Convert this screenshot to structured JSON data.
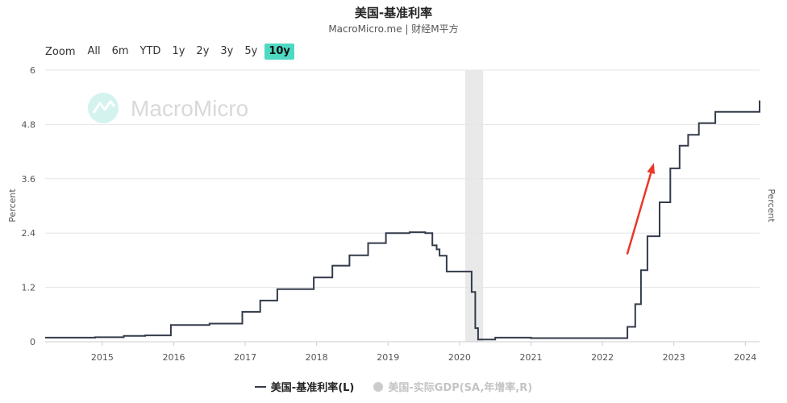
{
  "header": {
    "title": "美国-基准利率",
    "subtitle": "MacroMicro.me | 财经M平方"
  },
  "range_selector": {
    "zoom_label": "Zoom",
    "buttons": [
      "All",
      "6m",
      "YTD",
      "1y",
      "2y",
      "3y",
      "5y",
      "10y"
    ],
    "active": "10y"
  },
  "watermark": "MacroMicro",
  "colors": {
    "line": "#333b4a",
    "active": "#4ed9c3",
    "recession": "#e9e9e9",
    "arrow": "#e8382a",
    "grid": "#e6e6e6"
  },
  "legend": [
    {
      "label": "美国-基准利率(L)",
      "enabled": true
    },
    {
      "label": "美国-实际GDP(SA,年增率,R)",
      "enabled": false
    }
  ],
  "chart_data": {
    "type": "line",
    "xlim": [
      2014.2,
      2024.2
    ],
    "ylim": [
      0,
      6
    ],
    "yticks": [
      "0",
      "1.2",
      "2.4",
      "3.6",
      "4.8",
      "6"
    ],
    "xticks": [
      "2015",
      "2016",
      "2017",
      "2018",
      "2019",
      "2020",
      "2021",
      "2022",
      "2023",
      "2024"
    ],
    "ylabel_left": "Percent",
    "ylabel_right": "Percent",
    "recession_band": [
      2020.08,
      2020.33
    ],
    "annotation": "arrow",
    "series": [
      {
        "name": "美国-基准利率(L)",
        "step": true,
        "x": [
          2014.2,
          2014.5,
          2014.9,
          2015.3,
          2015.6,
          2015.96,
          2016.5,
          2016.96,
          2017.21,
          2017.45,
          2017.96,
          2018.22,
          2018.46,
          2018.72,
          2018.97,
          2019.3,
          2019.52,
          2019.62,
          2019.68,
          2019.72,
          2019.82,
          2020.17,
          2020.22,
          2020.26,
          2020.5,
          2021.0,
          2021.5,
          2022.2,
          2022.35,
          2022.46,
          2022.54,
          2022.63,
          2022.8,
          2022.95,
          2023.08,
          2023.2,
          2023.35,
          2023.58,
          2024.2
        ],
        "y": [
          0.09,
          0.09,
          0.1,
          0.13,
          0.14,
          0.37,
          0.4,
          0.66,
          0.91,
          1.16,
          1.42,
          1.68,
          1.91,
          2.18,
          2.4,
          2.42,
          2.4,
          2.13,
          2.04,
          1.9,
          1.55,
          1.1,
          0.3,
          0.05,
          0.09,
          0.08,
          0.08,
          0.08,
          0.33,
          0.83,
          1.58,
          2.33,
          3.08,
          3.83,
          4.33,
          4.57,
          4.83,
          5.08,
          5.33
        ]
      }
    ]
  }
}
